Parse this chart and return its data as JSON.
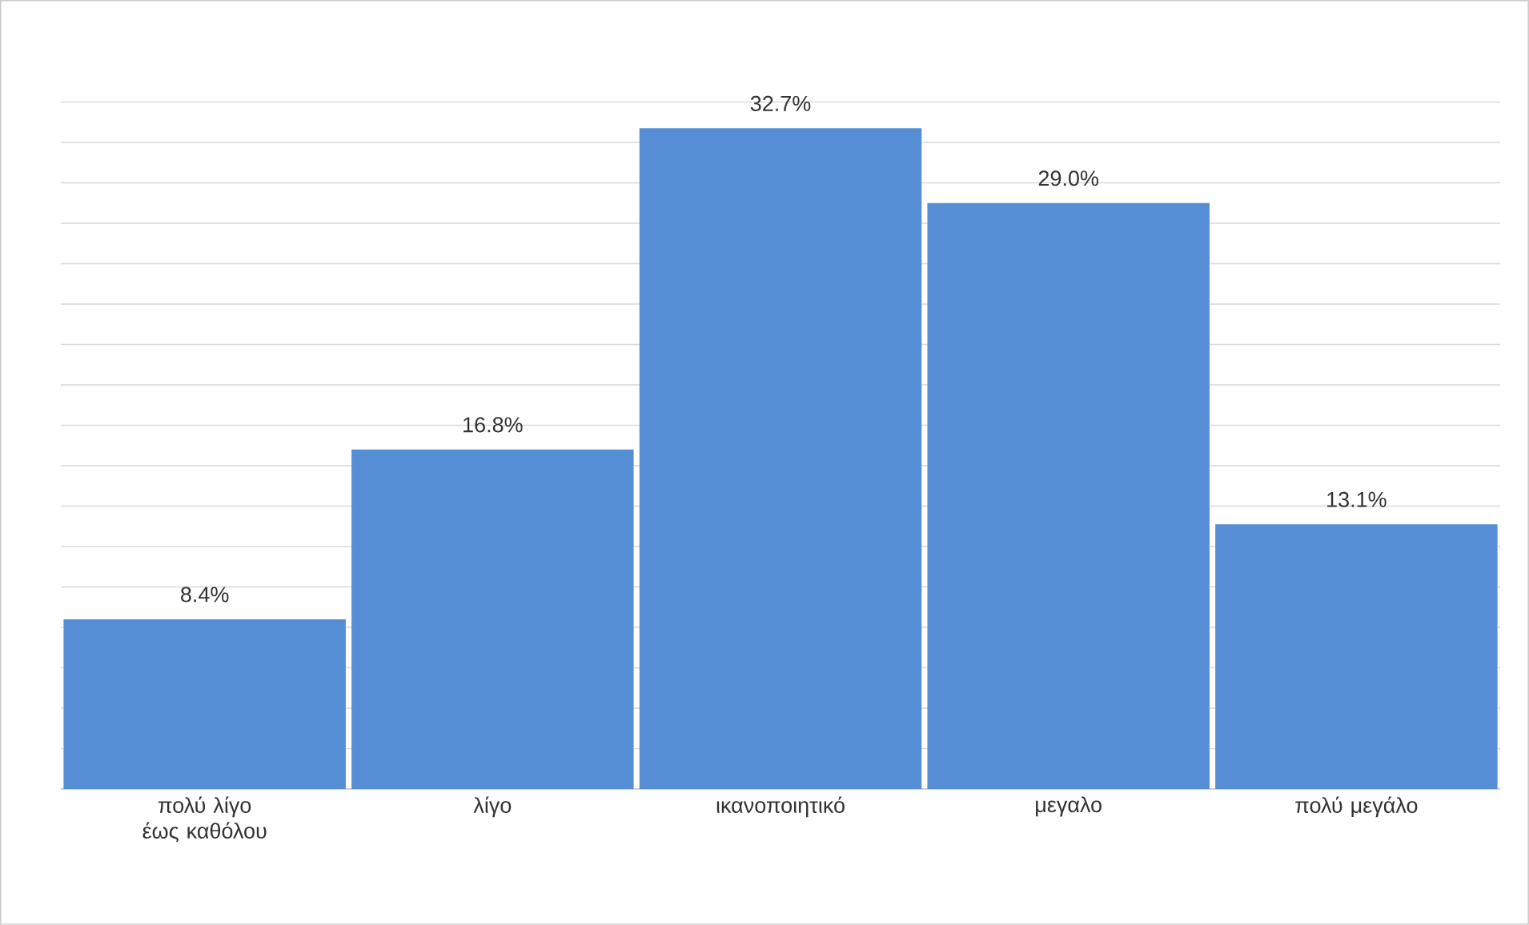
{
  "chart_data": {
    "type": "bar",
    "categories": [
      "πολύ λίγο έως καθόλου",
      "λίγο",
      "ικανοποιητικό",
      "μεγαλο",
      "πολύ μεγάλο"
    ],
    "values": [
      8.4,
      16.8,
      32.7,
      29.0,
      13.1
    ],
    "value_labels": [
      "8.4%",
      "16.8%",
      "32.7%",
      "29.0%",
      "13.1%"
    ],
    "color": "#558ed5",
    "grid": "y"
  }
}
